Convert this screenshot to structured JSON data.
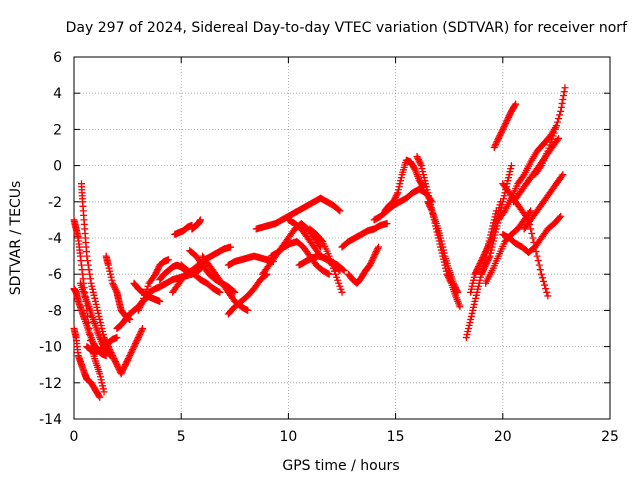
{
  "chart_data": {
    "type": "scatter",
    "title": "Day 297 of 2024, Sidereal Day-to-day VTEC variation (SDTVAR) for receiver norf",
    "xlabel": "GPS time / hours",
    "ylabel": "SDTVAR / TECUs",
    "xlim": [
      0,
      25
    ],
    "ylim": [
      -14,
      6
    ],
    "x_ticks": [
      "0",
      "5",
      "10",
      "15",
      "20",
      "25"
    ],
    "y_ticks": [
      "-14",
      "-12",
      "-10",
      "-8",
      "-6",
      "-4",
      "-2",
      "0",
      "2",
      "4",
      "6"
    ],
    "grid": true,
    "marker": "+",
    "color": "#ff0000",
    "series": [
      {
        "x": [
          0.0,
          0.1,
          0.2,
          0.3,
          0.45,
          0.6,
          0.8,
          1.0,
          1.2,
          1.4
        ],
        "y": [
          -3.0,
          -3.5,
          -4.0,
          -5.0,
          -6.5,
          -8.0,
          -10.0,
          -10.8,
          -11.5,
          -12.5
        ]
      },
      {
        "x": [
          0.0,
          0.1,
          0.2,
          0.35,
          0.5,
          0.7,
          0.9,
          1.1,
          1.3,
          1.5
        ],
        "y": [
          -6.8,
          -7.0,
          -7.5,
          -8.0,
          -8.5,
          -9.2,
          -9.8,
          -10.2,
          -10.4,
          -10.5
        ]
      },
      {
        "x": [
          0.0,
          0.1,
          0.2,
          0.35,
          0.5,
          0.6,
          0.8,
          1.0,
          1.2
        ],
        "y": [
          -9.0,
          -9.5,
          -10.5,
          -11.0,
          -11.5,
          -11.8,
          -12.0,
          -12.4,
          -12.8
        ]
      },
      {
        "x": [
          0.35,
          0.4,
          0.5,
          0.6,
          0.8,
          1.0,
          1.2,
          1.4,
          1.6
        ],
        "y": [
          -1.0,
          -2.0,
          -3.5,
          -5.0,
          -6.5,
          -7.5,
          -8.5,
          -9.5,
          -10.0
        ]
      },
      {
        "x": [
          0.3,
          0.5,
          0.7,
          0.9,
          1.1,
          1.3,
          1.5,
          1.7
        ],
        "y": [
          -6.5,
          -7.2,
          -7.8,
          -8.5,
          -9.2,
          -9.8,
          -10.2,
          -10.5
        ]
      },
      {
        "x": [
          0.6,
          0.8,
          1.0,
          1.2,
          1.4,
          1.6,
          1.8,
          2.0
        ],
        "y": [
          -10.0,
          -10.2,
          -10.3,
          -10.2,
          -10.0,
          -9.8,
          -9.6,
          -9.5
        ]
      },
      {
        "x": [
          1.5,
          1.6,
          1.8,
          2.0,
          2.1,
          2.2,
          2.4,
          2.6
        ],
        "y": [
          -5.0,
          -5.5,
          -6.5,
          -7.0,
          -7.5,
          -8.0,
          -8.3,
          -8.5
        ]
      },
      {
        "x": [
          1.6,
          1.8,
          2.0,
          2.2,
          2.4,
          2.6,
          2.8,
          3.0,
          3.2
        ],
        "y": [
          -10.0,
          -10.5,
          -11.0,
          -11.5,
          -11.0,
          -10.5,
          -10.0,
          -9.5,
          -9.0
        ]
      },
      {
        "x": [
          2.0,
          2.2,
          2.4,
          2.6,
          2.8,
          3.0,
          3.2,
          3.4
        ],
        "y": [
          -9.0,
          -8.8,
          -8.5,
          -8.2,
          -8.0,
          -7.8,
          -7.5,
          -7.3
        ]
      },
      {
        "x": [
          2.8,
          3.0,
          3.2,
          3.4,
          3.6,
          3.8,
          4.0
        ],
        "y": [
          -6.5,
          -6.8,
          -7.0,
          -7.2,
          -7.3,
          -7.4,
          -7.5
        ]
      },
      {
        "x": [
          3.0,
          3.2,
          3.5,
          3.8,
          4.0,
          4.2,
          4.4
        ],
        "y": [
          -8.0,
          -7.5,
          -6.5,
          -6.0,
          -5.5,
          -5.3,
          -5.2
        ]
      },
      {
        "x": [
          3.5,
          3.8,
          4.0,
          4.3,
          4.6,
          4.9,
          5.2,
          5.5,
          5.8,
          6.1
        ],
        "y": [
          -7.0,
          -6.8,
          -6.7,
          -6.5,
          -6.3,
          -6.2,
          -6.1,
          -6.0,
          -5.8,
          -5.5
        ]
      },
      {
        "x": [
          4.0,
          4.2,
          4.4,
          4.6,
          4.8,
          5.0,
          5.2,
          5.4
        ],
        "y": [
          -6.3,
          -6.0,
          -5.8,
          -5.6,
          -5.5,
          -5.6,
          -5.8,
          -6.0
        ]
      },
      {
        "x": [
          4.6,
          4.9,
          5.2,
          5.5,
          5.8,
          6.1,
          6.4,
          6.7,
          7.0,
          7.3
        ],
        "y": [
          -7.0,
          -6.5,
          -6.0,
          -5.8,
          -5.5,
          -5.2,
          -5.0,
          -4.8,
          -4.6,
          -4.5
        ]
      },
      {
        "x": [
          4.7,
          4.9,
          5.1,
          5.3,
          5.5
        ],
        "y": [
          -3.8,
          -3.7,
          -3.6,
          -3.4,
          -3.3
        ]
      },
      {
        "x": [
          5.5,
          5.6,
          5.7,
          5.8,
          5.9
        ],
        "y": [
          -3.5,
          -3.4,
          -3.3,
          -3.2,
          -3.0
        ]
      },
      {
        "x": [
          5.0,
          5.3,
          5.6,
          5.9,
          6.2,
          6.5,
          6.8
        ],
        "y": [
          -5.5,
          -5.8,
          -6.0,
          -6.3,
          -6.5,
          -6.8,
          -7.0
        ]
      },
      {
        "x": [
          5.4,
          5.7,
          6.0,
          6.3,
          6.6,
          6.9,
          7.2,
          7.5
        ],
        "y": [
          -4.7,
          -5.0,
          -5.5,
          -6.0,
          -6.3,
          -6.5,
          -6.7,
          -7.0
        ]
      },
      {
        "x": [
          6.0,
          6.3,
          6.6,
          6.9,
          7.2,
          7.5,
          7.8,
          8.1
        ],
        "y": [
          -5.0,
          -5.5,
          -6.0,
          -6.5,
          -7.0,
          -7.5,
          -7.8,
          -8.0
        ]
      },
      {
        "x": [
          7.2,
          7.5,
          7.8,
          8.1,
          8.4,
          8.7,
          9.0
        ],
        "y": [
          -8.2,
          -7.8,
          -7.5,
          -7.2,
          -6.8,
          -6.3,
          -6.0
        ]
      },
      {
        "x": [
          7.2,
          7.5,
          7.8,
          8.1,
          8.4,
          8.7,
          9.0,
          9.3
        ],
        "y": [
          -5.5,
          -5.3,
          -5.2,
          -5.1,
          -5.0,
          -5.1,
          -5.2,
          -5.3
        ]
      },
      {
        "x": [
          8.5,
          8.8,
          9.1,
          9.4,
          9.7,
          10.0,
          10.3,
          10.6,
          10.9,
          11.2,
          11.5,
          11.8,
          12.1,
          12.4
        ],
        "y": [
          -3.5,
          -3.4,
          -3.3,
          -3.2,
          -3.0,
          -2.8,
          -2.6,
          -2.4,
          -2.2,
          -2.0,
          -1.8,
          -2.0,
          -2.2,
          -2.5
        ]
      },
      {
        "x": [
          8.8,
          9.1,
          9.4,
          9.7,
          10.0,
          10.3,
          10.6,
          10.9,
          11.2,
          11.5
        ],
        "y": [
          -6.0,
          -5.5,
          -5.0,
          -4.5,
          -4.0,
          -3.5,
          -3.2,
          -3.5,
          -4.0,
          -4.5
        ]
      },
      {
        "x": [
          9.2,
          9.5,
          9.8,
          10.1,
          10.4,
          10.7,
          11.0,
          11.3,
          11.6,
          11.9
        ],
        "y": [
          -5.0,
          -4.8,
          -4.5,
          -4.3,
          -4.2,
          -4.5,
          -5.0,
          -5.5,
          -5.8,
          -6.0
        ]
      },
      {
        "x": [
          10.0,
          10.3,
          10.6,
          10.9,
          11.2,
          11.5,
          11.8,
          12.1,
          12.4
        ],
        "y": [
          -3.0,
          -3.2,
          -3.5,
          -4.0,
          -4.5,
          -5.0,
          -5.2,
          -5.5,
          -5.8
        ]
      },
      {
        "x": [
          11.0,
          11.3,
          11.6,
          11.9,
          12.2,
          12.5
        ],
        "y": [
          -3.5,
          -3.8,
          -4.2,
          -5.0,
          -6.0,
          -7.0
        ]
      },
      {
        "x": [
          10.5,
          10.8,
          11.1,
          11.4,
          11.7,
          12.0,
          12.3,
          12.6
        ],
        "y": [
          -5.5,
          -5.3,
          -5.1,
          -5.0,
          -5.1,
          -5.3,
          -5.5,
          -5.8
        ]
      },
      {
        "x": [
          12.5,
          12.8,
          13.1,
          13.4,
          13.7,
          14.0,
          14.3,
          14.6
        ],
        "y": [
          -4.5,
          -4.2,
          -4.0,
          -3.8,
          -3.6,
          -3.5,
          -3.3,
          -3.2
        ]
      },
      {
        "x": [
          12.8,
          13.0,
          13.2,
          13.4,
          13.6,
          13.8,
          14.0,
          14.2
        ],
        "y": [
          -6.0,
          -6.3,
          -6.5,
          -6.2,
          -5.8,
          -5.5,
          -5.0,
          -4.5
        ]
      },
      {
        "x": [
          14.0,
          14.3,
          14.6,
          14.9,
          15.2,
          15.5,
          15.8,
          16.1,
          16.4,
          16.7
        ],
        "y": [
          -3.0,
          -2.8,
          -2.5,
          -2.2,
          -2.0,
          -1.8,
          -1.5,
          -1.3,
          -1.5,
          -2.0
        ]
      },
      {
        "x": [
          14.5,
          14.7,
          14.9,
          15.1,
          15.3,
          15.5,
          15.7,
          15.9,
          16.1,
          16.3
        ],
        "y": [
          -2.5,
          -2.2,
          -2.0,
          -1.5,
          -0.5,
          0.3,
          0.2,
          -0.2,
          -0.8,
          -1.2
        ]
      },
      {
        "x": [
          16.0,
          16.2,
          16.4,
          16.6,
          16.8,
          17.0,
          17.2,
          17.4,
          17.6,
          17.8,
          18.0
        ],
        "y": [
          0.5,
          0.0,
          -1.0,
          -2.0,
          -3.0,
          -4.0,
          -5.0,
          -6.0,
          -6.5,
          -7.2,
          -7.8
        ]
      },
      {
        "x": [
          16.5,
          16.7,
          16.9,
          17.1,
          17.3,
          17.5,
          17.7,
          17.9
        ],
        "y": [
          -2.0,
          -2.5,
          -3.2,
          -4.0,
          -5.0,
          -5.8,
          -6.5,
          -7.0
        ]
      },
      {
        "x": [
          18.3,
          18.5,
          18.7,
          18.9,
          19.1,
          19.3,
          19.5,
          19.7
        ],
        "y": [
          -9.5,
          -8.5,
          -7.5,
          -6.5,
          -5.5,
          -4.5,
          -3.5,
          -2.5
        ]
      },
      {
        "x": [
          18.5,
          18.7,
          18.9,
          19.1,
          19.3,
          19.5,
          19.7,
          19.9
        ],
        "y": [
          -7.0,
          -6.0,
          -5.5,
          -5.0,
          -4.5,
          -4.0,
          -3.0,
          -2.0
        ]
      },
      {
        "x": [
          19.0,
          19.2,
          19.4,
          19.6,
          19.8,
          20.0,
          20.2,
          20.4
        ],
        "y": [
          -6.0,
          -5.5,
          -5.0,
          -4.0,
          -3.0,
          -2.0,
          -1.0,
          0.0
        ]
      },
      {
        "x": [
          19.6,
          19.8,
          20.0,
          20.2,
          20.4,
          20.6
        ],
        "y": [
          1.0,
          1.5,
          2.0,
          2.5,
          3.0,
          3.4
        ]
      },
      {
        "x": [
          19.8,
          20.1,
          20.4,
          20.7,
          21.0,
          21.3,
          21.6,
          21.9,
          22.2,
          22.5
        ],
        "y": [
          -3.0,
          -2.5,
          -1.8,
          -1.0,
          -0.5,
          0.2,
          0.8,
          1.2,
          1.6,
          2.2
        ]
      },
      {
        "x": [
          20.0,
          20.3,
          20.6,
          20.9,
          21.2,
          21.5,
          21.8,
          22.1
        ],
        "y": [
          -1.0,
          -1.5,
          -2.0,
          -2.5,
          -3.0,
          -4.5,
          -6.0,
          -7.2
        ]
      },
      {
        "x": [
          20.5,
          20.8,
          21.1,
          21.4,
          21.7,
          22.0,
          22.3,
          22.6
        ],
        "y": [
          -2.0,
          -1.5,
          -1.0,
          -0.5,
          0.0,
          0.5,
          1.0,
          1.5
        ]
      },
      {
        "x": [
          21.0,
          21.3,
          21.6,
          21.9,
          22.2,
          22.5,
          22.8
        ],
        "y": [
          -3.5,
          -3.0,
          -2.5,
          -2.0,
          -1.5,
          -1.0,
          -0.5
        ]
      },
      {
        "x": [
          21.5,
          21.8,
          22.1,
          22.4,
          22.7,
          22.9
        ],
        "y": [
          -0.5,
          0.0,
          0.8,
          1.8,
          3.0,
          4.3
        ]
      },
      {
        "x": [
          19.2,
          19.5,
          19.8,
          20.1,
          20.4,
          20.7,
          21.0,
          21.3
        ],
        "y": [
          -6.5,
          -5.8,
          -5.0,
          -4.2,
          -3.8,
          -3.5,
          -3.0,
          -2.5
        ]
      },
      {
        "x": [
          20.0,
          20.3,
          20.6,
          20.9,
          21.2,
          21.5,
          21.8,
          22.1,
          22.4,
          22.7
        ],
        "y": [
          -3.8,
          -4.0,
          -4.3,
          -4.5,
          -4.8,
          -4.5,
          -4.0,
          -3.5,
          -3.2,
          -2.8
        ]
      }
    ]
  }
}
